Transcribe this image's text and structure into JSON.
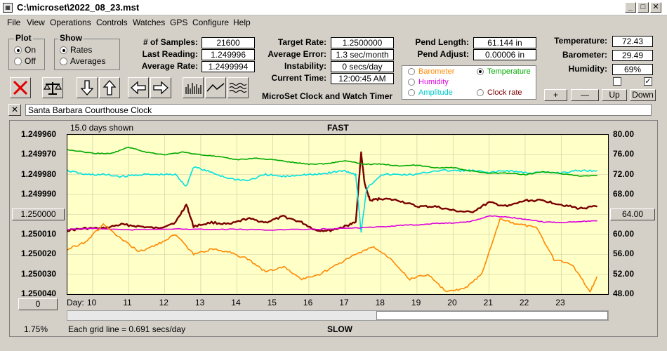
{
  "window": {
    "title": "C:\\microset\\2022_08_23.mst"
  },
  "menu": [
    "File",
    "View",
    "Operations",
    "Controls",
    "Watches",
    "GPS",
    "Configure",
    "Help"
  ],
  "plot_group": {
    "title": "Plot",
    "on": "On",
    "off": "Off",
    "selected": "on"
  },
  "show_group": {
    "title": "Show",
    "rates": "Rates",
    "averages": "Averages",
    "selected": "rates"
  },
  "stats": {
    "samples_label": "# of Samples:",
    "samples": "21600",
    "last_label": "Last Reading:",
    "last": "1.249996",
    "avg_rate_label": "Average Rate:",
    "avg_rate": "1.2499994",
    "target_label": "Target Rate:",
    "target": "1.2500000",
    "avg_err_label": "Average Error:",
    "avg_err": "1.3 sec/month",
    "instab_label": "Instability:",
    "instab": "0 secs/day",
    "time_label": "Current Time:",
    "time": "12:00:45 AM",
    "pend_len_label": "Pend Length:",
    "pend_len": "61.144 in",
    "pend_adj_label": "Pend Adjust:",
    "pend_adj": "0.00006 in",
    "temp_label": "Temperature:",
    "temp": "72.43",
    "baro_label": "Barometer:",
    "baro": "29.49",
    "hum_label": "Humidity:",
    "hum": "69%"
  },
  "app_caption": "MicroSet Clock and Watch Timer",
  "legend": {
    "barometer": "Barometer",
    "temperature": "Temperature",
    "humidity": "Humidity",
    "amplitude": "Amplitude",
    "clock_rate": "Clock rate",
    "selected": "temperature"
  },
  "small_buttons": {
    "plus": "+",
    "minus": "—",
    "up": "Up",
    "down": "Down"
  },
  "clock_name": "Santa Barbara Courthouse Clock",
  "close_glyph": "✕",
  "colors": {
    "barometer": "#ff8800",
    "temperature": "#00aa00",
    "humidity": "#dd00dd",
    "amplitude": "#00e0e0",
    "clock_rate": "#7a0000",
    "plot_bg": "#ffffc8"
  },
  "chart": {
    "days_shown": "15.0 days shown",
    "top_label": "FAST",
    "bottom_label": "SLOW",
    "grid_note": "Each grid line = 0.691 secs/day",
    "left_pct": "1.75%",
    "left_button": "1.250000",
    "right_button": "64.00",
    "zero_button": "0",
    "day_prefix": "Day:"
  },
  "chart_data": {
    "type": "line",
    "x_label": "Day:",
    "x_ticks": [
      "10",
      "11",
      "12",
      "13",
      "14",
      "15",
      "16",
      "17",
      "18",
      "19",
      "20",
      "21",
      "22",
      "23"
    ],
    "xlim": [
      9.3,
      24.3
    ],
    "y_left_ticks": [
      "1.249960",
      "1.249970",
      "1.249980",
      "1.249990",
      "1.250000",
      "1.250010",
      "1.250020",
      "1.250030",
      "1.250040"
    ],
    "y_left_range": [
      1.24996,
      1.25004
    ],
    "y_right_ticks": [
      "80.00",
      "76.00",
      "72.00",
      "68.00",
      "64.00",
      "60.00",
      "56.00",
      "52.00",
      "48.00"
    ],
    "y_right_range": [
      80,
      48
    ],
    "series": [
      {
        "name": "Clock rate",
        "axis": "left",
        "color": "#7a0000",
        "x": [
          9.3,
          9.8,
          10.3,
          10.8,
          11.3,
          11.8,
          12.3,
          12.6,
          12.8,
          13.3,
          13.8,
          14.3,
          14.8,
          15.3,
          15.8,
          16.2,
          16.6,
          17.0,
          17.3,
          17.45,
          17.55,
          17.7,
          18.0,
          18.5,
          19.0,
          19.5,
          20.0,
          20.5,
          21.0,
          21.5,
          22.0,
          22.5,
          23.0,
          23.5,
          24.0
        ],
        "values": [
          1.250008,
          1.250007,
          1.250007,
          1.250005,
          1.250006,
          1.250007,
          1.250004,
          1.249995,
          1.250006,
          1.250004,
          1.250005,
          1.250002,
          1.250004,
          1.250001,
          1.250004,
          1.250008,
          1.250008,
          1.250006,
          1.250004,
          1.249969,
          1.249985,
          1.249993,
          1.249992,
          1.249993,
          1.249996,
          1.249996,
          1.249998,
          1.249999,
          1.249994,
          1.249996,
          1.249993,
          1.249993,
          1.249995,
          1.249997,
          1.249996
        ]
      },
      {
        "name": "Amplitude",
        "axis": "left",
        "color": "#00e0e0",
        "x": [
          9.3,
          9.8,
          10.3,
          10.8,
          11.3,
          11.8,
          12.3,
          12.6,
          12.8,
          13.3,
          13.8,
          14.3,
          14.8,
          15.3,
          15.8,
          16.2,
          16.6,
          17.0,
          17.3,
          17.45,
          17.6,
          18.0,
          18.5,
          19.0,
          19.5,
          20.0,
          20.5,
          21.0,
          21.5,
          22.0,
          22.5,
          23.0,
          23.5,
          24.0
        ],
        "values": [
          1.249978,
          1.24998,
          1.24998,
          1.249981,
          1.24998,
          1.24998,
          1.24998,
          1.249986,
          1.249976,
          1.249979,
          1.249982,
          1.249983,
          1.24998,
          1.249981,
          1.24998,
          1.24998,
          1.249979,
          1.249978,
          1.24998,
          1.250009,
          1.249987,
          1.24998,
          1.24998,
          1.24998,
          1.249978,
          1.249978,
          1.249978,
          1.249979,
          1.249978,
          1.249979,
          1.249979,
          1.249979,
          1.249978,
          1.249978
        ]
      },
      {
        "name": "Temperature",
        "axis": "right",
        "color": "#00aa00",
        "x": [
          9.3,
          10.0,
          10.5,
          11.0,
          11.5,
          12.0,
          12.5,
          13.0,
          13.5,
          14.0,
          14.5,
          15.0,
          15.5,
          16.0,
          16.5,
          17.0,
          17.5,
          18.0,
          18.5,
          19.0,
          19.5,
          20.0,
          20.5,
          21.0,
          21.5,
          22.0,
          22.5,
          23.0,
          23.5,
          24.0
        ],
        "values": [
          77.0,
          76.3,
          76.2,
          77.5,
          76.5,
          76.0,
          76.5,
          76.0,
          75.6,
          75.0,
          75.3,
          75.0,
          74.5,
          74.1,
          74.2,
          74.8,
          74.1,
          74.1,
          73.8,
          73.9,
          73.4,
          73.4,
          72.7,
          72.3,
          72.3,
          72.0,
          72.6,
          72.2,
          71.7,
          71.8
        ]
      },
      {
        "name": "Humidity",
        "axis": "right",
        "color": "#dd00dd",
        "x": [
          9.3,
          10.0,
          11.0,
          12.0,
          13.0,
          14.0,
          15.0,
          16.0,
          17.0,
          18.0,
          18.5,
          19.0,
          19.5,
          20.0,
          20.5,
          21.0,
          21.5,
          22.0,
          22.5,
          23.0,
          23.5,
          24.0
        ],
        "values": [
          61.0,
          61.2,
          60.9,
          61.1,
          61.0,
          61.0,
          60.9,
          61.0,
          61.2,
          61.5,
          61.8,
          61.9,
          62.2,
          62.3,
          62.6,
          63.7,
          63.5,
          63.0,
          62.5,
          62.4,
          62.6,
          62.7
        ]
      },
      {
        "name": "Barometer",
        "axis": "right",
        "color": "#ff8800",
        "x": [
          9.3,
          9.8,
          10.3,
          10.8,
          11.3,
          11.8,
          12.3,
          12.8,
          13.3,
          13.8,
          14.3,
          14.8,
          15.3,
          15.8,
          16.3,
          16.8,
          17.3,
          17.8,
          18.3,
          18.8,
          19.3,
          19.8,
          20.3,
          20.8,
          21.3,
          21.8,
          22.3,
          22.8,
          23.3,
          23.8,
          24.0
        ],
        "values": [
          57.0,
          58.5,
          62.0,
          59.0,
          56.5,
          58.0,
          60.0,
          56.0,
          57.0,
          56.5,
          55.0,
          52.5,
          53.5,
          51.0,
          52.0,
          54.0,
          56.0,
          57.5,
          55.0,
          51.0,
          52.0,
          48.5,
          49.0,
          52.0,
          63.0,
          62.0,
          61.5,
          55.0,
          54.0,
          48.5,
          51.5
        ]
      }
    ]
  }
}
